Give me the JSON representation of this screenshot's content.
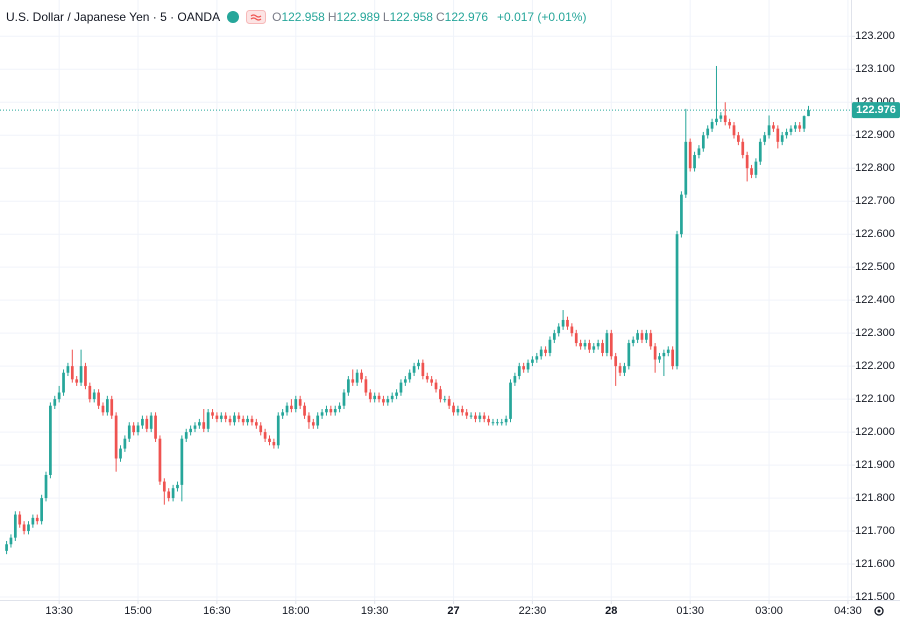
{
  "header": {
    "symbol": "U.S. Dollar / Japanese Yen · 5 · OANDA",
    "ohlc": [
      {
        "label": "O",
        "value": 122.958
      },
      {
        "label": "H",
        "value": 122.989
      },
      {
        "label": "L",
        "value": 122.958
      },
      {
        "label": "C",
        "value": 122.976
      }
    ],
    "change": "+0.017 (+0.01%)"
  },
  "chart_data": {
    "type": "candlestick",
    "open": [
      121.64,
      121.66,
      121.68,
      121.75,
      121.72,
      121.7,
      121.72,
      121.74,
      121.73,
      121.8,
      121.87,
      122.08,
      122.1,
      122.12,
      122.18,
      122.2,
      122.16,
      122.15,
      122.2,
      122.14,
      122.1,
      122.12,
      122.08,
      122.06,
      122.1,
      122.05,
      121.92,
      121.95,
      121.98,
      122.02,
      122.0,
      122.02,
      122.04,
      122.01,
      122.05,
      121.98,
      121.85,
      121.82,
      121.8,
      121.83,
      121.84,
      121.98,
      122.0,
      122.01,
      122.02,
      122.03,
      122.01,
      122.06,
      122.05,
      122.04,
      122.05,
      122.04,
      122.03,
      122.05,
      122.04,
      122.03,
      122.04,
      122.03,
      122.02,
      122.0,
      121.98,
      121.97,
      121.96,
      122.05,
      122.06,
      122.08,
      122.07,
      122.1,
      122.08,
      122.05,
      122.03,
      122.02,
      122.05,
      122.06,
      122.07,
      122.06,
      122.07,
      122.08,
      122.12,
      122.16,
      122.15,
      122.18,
      122.16,
      122.12,
      122.1,
      122.11,
      122.1,
      122.09,
      122.1,
      122.11,
      122.12,
      122.15,
      122.16,
      122.18,
      122.2,
      122.21,
      122.17,
      122.16,
      122.15,
      122.13,
      122.1,
      122.1,
      122.08,
      122.06,
      122.07,
      122.06,
      122.05,
      122.05,
      122.04,
      122.05,
      122.04,
      122.03,
      122.03,
      122.03,
      122.03,
      122.04,
      122.15,
      122.17,
      122.2,
      122.19,
      122.21,
      122.22,
      122.23,
      122.25,
      122.24,
      122.28,
      122.3,
      122.32,
      122.34,
      122.32,
      122.3,
      122.27,
      122.26,
      122.27,
      122.25,
      122.26,
      122.27,
      122.24,
      122.3,
      122.23,
      122.2,
      122.18,
      122.2,
      122.27,
      122.28,
      122.3,
      122.28,
      122.3,
      122.26,
      122.22,
      122.23,
      122.24,
      122.25,
      122.2,
      122.6,
      122.72,
      122.88,
      122.8,
      122.84,
      122.86,
      122.9,
      122.92,
      122.94,
      122.95,
      122.96,
      122.94,
      122.93,
      122.9,
      122.88,
      122.84,
      122.8,
      122.78,
      122.82,
      122.88,
      122.9,
      122.93,
      122.92,
      122.88,
      122.9,
      122.91,
      122.92,
      122.93,
      122.92,
      122.958
    ],
    "high": [
      121.67,
      121.69,
      121.76,
      121.76,
      121.73,
      121.73,
      121.75,
      121.75,
      121.81,
      121.88,
      122.09,
      122.11,
      122.14,
      122.19,
      122.21,
      122.25,
      122.17,
      122.25,
      122.21,
      122.15,
      122.13,
      122.13,
      122.09,
      122.11,
      122.11,
      122.06,
      121.96,
      121.99,
      122.03,
      122.03,
      122.03,
      122.05,
      122.05,
      122.06,
      122.06,
      121.99,
      121.86,
      121.83,
      121.84,
      121.85,
      121.99,
      122.01,
      122.02,
      122.03,
      122.04,
      122.07,
      122.07,
      122.07,
      122.06,
      122.06,
      122.06,
      122.05,
      122.06,
      122.06,
      122.05,
      122.05,
      122.05,
      122.04,
      122.03,
      122.01,
      121.99,
      121.98,
      122.06,
      122.07,
      122.09,
      122.1,
      122.11,
      122.11,
      122.09,
      122.06,
      122.04,
      122.06,
      122.07,
      122.08,
      122.08,
      122.08,
      122.09,
      122.13,
      122.17,
      122.19,
      122.19,
      122.19,
      122.17,
      122.13,
      122.12,
      122.12,
      122.11,
      122.11,
      122.12,
      122.13,
      122.16,
      122.17,
      122.19,
      122.21,
      122.22,
      122.22,
      122.18,
      122.17,
      122.16,
      122.14,
      122.11,
      122.11,
      122.09,
      122.08,
      122.08,
      122.07,
      122.06,
      122.06,
      122.06,
      122.06,
      122.05,
      122.04,
      122.04,
      122.04,
      122.05,
      122.16,
      122.18,
      122.21,
      122.21,
      122.22,
      122.23,
      122.24,
      122.26,
      122.26,
      122.29,
      122.31,
      122.33,
      122.37,
      122.35,
      122.33,
      122.31,
      122.28,
      122.28,
      122.28,
      122.27,
      122.28,
      122.28,
      122.31,
      122.31,
      122.24,
      122.21,
      122.21,
      122.28,
      122.29,
      122.31,
      122.31,
      122.31,
      122.31,
      122.27,
      122.24,
      122.25,
      122.26,
      122.26,
      122.61,
      122.73,
      122.98,
      122.89,
      122.85,
      122.87,
      122.91,
      122.93,
      122.95,
      123.11,
      122.97,
      123.0,
      122.95,
      122.94,
      122.91,
      122.89,
      122.85,
      122.81,
      122.83,
      122.89,
      122.91,
      122.96,
      122.94,
      122.93,
      122.91,
      122.92,
      122.93,
      122.94,
      122.94,
      122.96,
      122.989
    ],
    "low": [
      121.63,
      121.65,
      121.67,
      121.71,
      121.69,
      121.69,
      121.71,
      121.72,
      121.72,
      121.79,
      121.86,
      122.07,
      122.09,
      122.11,
      122.17,
      122.15,
      122.14,
      122.14,
      122.13,
      122.09,
      122.09,
      122.07,
      122.05,
      122.05,
      122.04,
      121.88,
      121.91,
      121.94,
      121.97,
      121.99,
      121.99,
      122.01,
      122.0,
      122.0,
      121.97,
      121.84,
      121.78,
      121.79,
      121.79,
      121.82,
      121.79,
      121.97,
      121.99,
      122.0,
      122.01,
      122.0,
      122.0,
      122.04,
      122.03,
      122.03,
      122.03,
      122.02,
      122.02,
      122.03,
      122.02,
      122.02,
      122.02,
      122.01,
      121.99,
      121.97,
      121.96,
      121.95,
      121.95,
      122.04,
      122.05,
      122.06,
      122.06,
      122.07,
      122.04,
      122.01,
      122.01,
      122.01,
      122.04,
      122.05,
      122.05,
      122.05,
      122.06,
      122.07,
      122.11,
      122.14,
      122.14,
      122.15,
      122.11,
      122.09,
      122.09,
      122.09,
      122.08,
      122.08,
      122.09,
      122.1,
      122.11,
      122.14,
      122.15,
      122.17,
      122.19,
      122.16,
      122.15,
      122.14,
      122.12,
      122.09,
      122.09,
      122.07,
      122.05,
      122.05,
      122.05,
      122.04,
      122.04,
      122.03,
      122.03,
      122.03,
      122.02,
      122.02,
      122.02,
      122.02,
      122.02,
      122.03,
      122.14,
      122.16,
      122.18,
      122.18,
      122.2,
      122.21,
      122.22,
      122.23,
      122.23,
      122.27,
      122.29,
      122.31,
      122.31,
      122.29,
      122.26,
      122.25,
      122.25,
      122.24,
      122.24,
      122.25,
      122.23,
      122.23,
      122.22,
      122.14,
      122.17,
      122.17,
      122.19,
      122.26,
      122.27,
      122.27,
      122.27,
      122.25,
      122.18,
      122.21,
      122.17,
      122.23,
      122.19,
      122.19,
      122.59,
      122.71,
      122.79,
      122.79,
      122.83,
      122.85,
      122.89,
      122.91,
      122.93,
      122.94,
      122.93,
      122.92,
      122.89,
      122.87,
      122.83,
      122.76,
      122.77,
      122.77,
      122.81,
      122.87,
      122.89,
      122.91,
      122.86,
      122.87,
      122.89,
      122.9,
      122.91,
      122.91,
      122.91,
      122.958
    ],
    "close": [
      121.66,
      121.68,
      121.75,
      121.72,
      121.7,
      121.72,
      121.74,
      121.73,
      121.8,
      121.87,
      122.08,
      122.1,
      122.12,
      122.18,
      122.2,
      122.16,
      122.15,
      122.2,
      122.14,
      122.1,
      122.12,
      122.08,
      122.06,
      122.1,
      122.05,
      121.92,
      121.95,
      121.98,
      122.02,
      122.0,
      122.02,
      122.04,
      122.01,
      122.05,
      121.98,
      121.85,
      121.82,
      121.8,
      121.83,
      121.84,
      121.98,
      122.0,
      122.01,
      122.02,
      122.03,
      122.01,
      122.06,
      122.05,
      122.04,
      122.05,
      122.04,
      122.03,
      122.05,
      122.04,
      122.03,
      122.04,
      122.03,
      122.02,
      122.0,
      121.98,
      121.97,
      121.96,
      122.05,
      122.06,
      122.08,
      122.07,
      122.1,
      122.08,
      122.05,
      122.03,
      122.02,
      122.05,
      122.06,
      122.07,
      122.06,
      122.07,
      122.08,
      122.12,
      122.16,
      122.15,
      122.18,
      122.16,
      122.12,
      122.1,
      122.11,
      122.1,
      122.09,
      122.1,
      122.11,
      122.12,
      122.15,
      122.16,
      122.18,
      122.2,
      122.21,
      122.17,
      122.16,
      122.15,
      122.13,
      122.1,
      122.1,
      122.08,
      122.06,
      122.07,
      122.06,
      122.05,
      122.05,
      122.04,
      122.05,
      122.04,
      122.03,
      122.03,
      122.03,
      122.03,
      122.04,
      122.15,
      122.17,
      122.2,
      122.19,
      122.21,
      122.22,
      122.23,
      122.25,
      122.24,
      122.28,
      122.3,
      122.32,
      122.34,
      122.32,
      122.3,
      122.27,
      122.26,
      122.27,
      122.25,
      122.26,
      122.27,
      122.24,
      122.3,
      122.23,
      122.2,
      122.18,
      122.2,
      122.27,
      122.28,
      122.3,
      122.28,
      122.3,
      122.26,
      122.22,
      122.23,
      122.24,
      122.25,
      122.2,
      122.6,
      122.72,
      122.88,
      122.8,
      122.84,
      122.86,
      122.9,
      122.92,
      122.94,
      122.95,
      122.96,
      122.94,
      122.93,
      122.9,
      122.88,
      122.84,
      122.8,
      122.78,
      122.82,
      122.88,
      122.9,
      122.93,
      122.92,
      122.88,
      122.9,
      122.91,
      122.92,
      122.93,
      122.92,
      122.958,
      122.976
    ],
    "up_color": "#26a69a",
    "down_color": "#ef5350",
    "last_price": 122.976,
    "ylim": [
      121.491,
      123.31
    ],
    "yticks": [
      {
        "value": 121.5,
        "label": "121.500"
      },
      {
        "value": 121.6,
        "label": "121.600"
      },
      {
        "value": 121.7,
        "label": "121.700"
      },
      {
        "value": 121.8,
        "label": "121.800"
      },
      {
        "value": 121.9,
        "label": "121.900"
      },
      {
        "value": 122.0,
        "label": "122.000"
      },
      {
        "value": 122.1,
        "label": "122.100"
      },
      {
        "value": 122.2,
        "label": "122.200"
      },
      {
        "value": 122.3,
        "label": "122.300"
      },
      {
        "value": 122.4,
        "label": "122.400"
      },
      {
        "value": 122.5,
        "label": "122.500"
      },
      {
        "value": 122.6,
        "label": "122.600"
      },
      {
        "value": 122.7,
        "label": "122.700"
      },
      {
        "value": 122.8,
        "label": "122.800"
      },
      {
        "value": 122.9,
        "label": "122.900"
      },
      {
        "value": 123.0,
        "label": "123.000"
      },
      {
        "value": 123.1,
        "label": "123.100"
      },
      {
        "value": 123.2,
        "label": "123.200"
      }
    ],
    "xlim": [
      -1.5,
      192.7
    ],
    "xticks": [
      {
        "value": 12,
        "label": "13:30"
      },
      {
        "value": 30,
        "label": "15:00"
      },
      {
        "value": 48,
        "label": "16:30"
      },
      {
        "value": 66,
        "label": "18:00"
      },
      {
        "value": 84,
        "label": "19:30"
      },
      {
        "value": 102,
        "label": "27"
      },
      {
        "value": 120,
        "label": "22:30"
      },
      {
        "value": 138,
        "label": "28"
      },
      {
        "value": 156,
        "label": "01:30"
      },
      {
        "value": 174,
        "label": "03:00"
      },
      {
        "value": 192,
        "label": "04:30"
      }
    ],
    "grid": true
  }
}
